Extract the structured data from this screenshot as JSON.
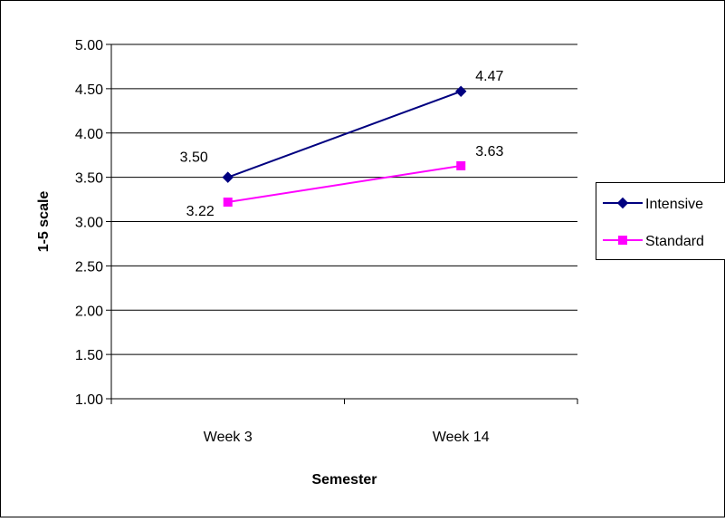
{
  "chart_data": {
    "type": "line",
    "title": "",
    "xlabel": "Semester",
    "ylabel": "1-5 scale",
    "categories": [
      "Week 3",
      "Week 14"
    ],
    "ylim": [
      1.0,
      5.0
    ],
    "ytick_step": 0.5,
    "ytick_labels": [
      "1.00",
      "1.50",
      "2.00",
      "2.50",
      "3.00",
      "3.50",
      "4.00",
      "4.50",
      "5.00"
    ],
    "grid": "horizontal",
    "legend_position": "right",
    "series": [
      {
        "name": "Intensive",
        "values": [
          3.5,
          4.47
        ],
        "value_labels": [
          "3.50",
          "4.47"
        ],
        "color": "#000080",
        "marker": "diamond"
      },
      {
        "name": "Standard",
        "values": [
          3.22,
          3.63
        ],
        "value_labels": [
          "3.22",
          "3.63"
        ],
        "color": "#ff00ff",
        "marker": "square"
      }
    ]
  }
}
